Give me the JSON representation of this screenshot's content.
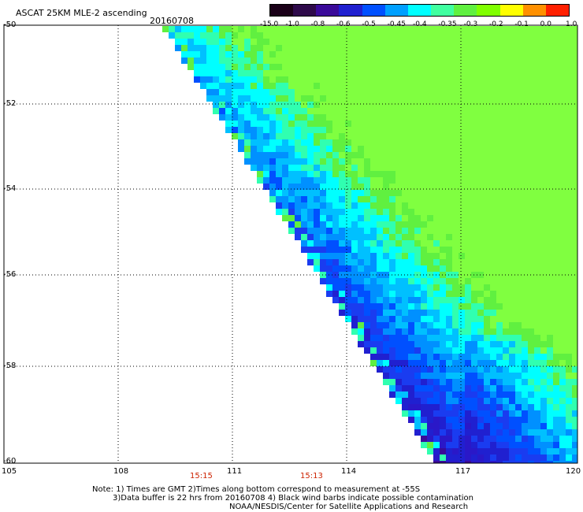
{
  "header": {
    "title": "ASCAT 25KM MLE-2 ascending",
    "date": "20160708"
  },
  "colorbar": {
    "labels": [
      "-15.0",
      "-1.0",
      "-0.8",
      "-0.6",
      "-0.5",
      "-0.45",
      "-0.4",
      "-0.35",
      "-0.3",
      "-0.2",
      "-0.1",
      "0.0",
      "1.0"
    ],
    "colors": [
      "#1a0018",
      "#2e0a4a",
      "#3a0a99",
      "#2020d0",
      "#0050ff",
      "#00a0ff",
      "#00ffff",
      "#40ffa0",
      "#60f040",
      "#80ff00",
      "#ffff00",
      "#ff9000",
      "#ff2000"
    ]
  },
  "axes": {
    "lat_labels": [
      "-50",
      "-52",
      "-54",
      "-56",
      "-58",
      "-60"
    ],
    "lon_labels": [
      "105",
      "108",
      "111",
      "114",
      "117",
      "120"
    ]
  },
  "times": [
    "15:15",
    "15:13"
  ],
  "notes": {
    "line1": "Note: 1) Times are GMT 2)Times along bottom correspond to measurement at -55S",
    "line2": "3)Data buffer is 22 hrs from 20160708 4) Black wind barbs indicate possible contamination",
    "line3": "NOAA/NESDIS/Center for Satellite Applications and Research"
  }
}
